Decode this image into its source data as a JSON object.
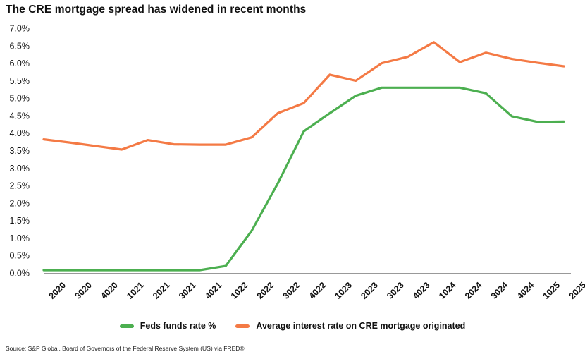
{
  "chart_data": {
    "type": "line",
    "title": "The CRE mortgage spread has widened in recent months",
    "x": [
      "2Q20",
      "3Q20",
      "4Q20",
      "1Q21",
      "2Q21",
      "3Q21",
      "4Q21",
      "1Q22",
      "2Q22",
      "3Q22",
      "4Q22",
      "1Q23",
      "2Q23",
      "3Q23",
      "4Q23",
      "1Q24",
      "2Q24",
      "3Q24",
      "4Q24",
      "1Q25",
      "2Q25"
    ],
    "x_tick_labels": [
      "2020",
      "3020",
      "4020",
      "1021",
      "2021",
      "3021",
      "4021",
      "1022",
      "2022",
      "3022",
      "4022",
      "1023",
      "2023",
      "3023",
      "4023",
      "1024",
      "2024",
      "3024",
      "4024",
      "1025",
      "2025"
    ],
    "ylim": [
      0,
      7
    ],
    "y_tick_labels": [
      "0.0%",
      "0.5%",
      "1.0%",
      "1.5%",
      "2.0%",
      "2.5%",
      "3.0%",
      "3.5%",
      "4.0%",
      "4.5%",
      "5.0%",
      "5.5%",
      "6.0%",
      "6.5%",
      "7.0%"
    ],
    "grid": false,
    "legend_position": "bottom",
    "series": [
      {
        "name": "Feds funds rate %",
        "color": "#4caf50",
        "values": [
          0.08,
          0.08,
          0.08,
          0.08,
          0.08,
          0.08,
          0.08,
          0.2,
          1.21,
          2.56,
          4.05,
          4.57,
          5.07,
          5.3,
          5.3,
          5.3,
          5.3,
          5.14,
          4.48,
          4.32,
          4.33
        ]
      },
      {
        "name": "Average interest rate on CRE mortgage originated",
        "color": "#f47a45",
        "values": [
          3.82,
          3.73,
          3.63,
          3.53,
          3.8,
          3.68,
          3.67,
          3.67,
          3.88,
          4.57,
          4.86,
          5.67,
          5.5,
          6.0,
          6.18,
          6.6,
          6.03,
          6.3,
          6.12,
          6.01,
          5.91
        ]
      }
    ]
  },
  "source": "Source: S&P Global, Board of Governors of the Federal Reserve System (US) via FRED®"
}
